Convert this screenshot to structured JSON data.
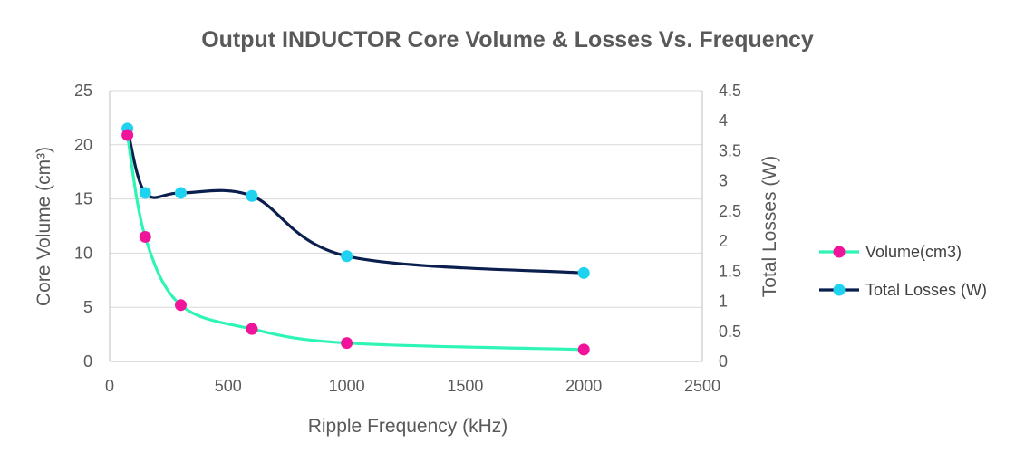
{
  "chart_data": {
    "type": "scatter",
    "title": "Output INDUCTOR Core Volume & Losses Vs. Frequency",
    "xlabel": "Ripple Frequency (kHz)",
    "ylabel": "Core Volume (cm³)",
    "y2label": "Total Losses (W)",
    "xlim": [
      0,
      2500
    ],
    "ylim": [
      0,
      25
    ],
    "y2lim": [
      0,
      4.5
    ],
    "x_ticks": [
      "0",
      "500",
      "1000",
      "1500",
      "2000",
      "2500"
    ],
    "y_ticks": [
      "0",
      "5",
      "10",
      "15",
      "20",
      "25"
    ],
    "y2_ticks": [
      "0",
      "0.5",
      "1",
      "1.5",
      "2",
      "2.5",
      "3",
      "3.5",
      "4",
      "4.5"
    ],
    "grid": true,
    "legend_position": "right",
    "series": [
      {
        "name": "Volume(cm3)",
        "axis": "left",
        "line_color": "#2ef5b5",
        "marker_color": "#f0149b",
        "x": [
          75,
          150,
          300,
          600,
          1000,
          2000
        ],
        "y": [
          20.9,
          11.5,
          5.2,
          3.0,
          1.7,
          1.1
        ]
      },
      {
        "name": "Total Losses (W)",
        "axis": "right",
        "line_color": "#0b1f4f",
        "marker_color": "#1fd3f0",
        "x": [
          75,
          150,
          300,
          600,
          1000,
          2000
        ],
        "y": [
          3.87,
          2.8,
          2.8,
          2.75,
          1.75,
          1.47
        ]
      }
    ]
  }
}
